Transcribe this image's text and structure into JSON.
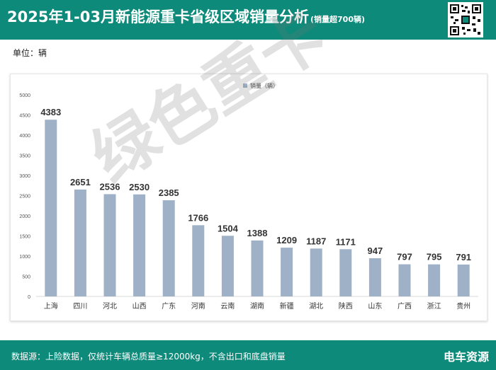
{
  "header": {
    "title": "2025年1-03月新能源重卡省级区域销量分析",
    "subtitle": "(销量超700辆)"
  },
  "unit_label": "单位：辆",
  "footer": {
    "source": "数据源：上险数据，仅统计车辆总质量≥12000kg，不含出口和底盘销量",
    "brand": "电车资源"
  },
  "watermark": "绿色重卡",
  "colors": {
    "header_bg": "#0e8a7a",
    "bar": "#9fb1c6"
  },
  "chart_data": {
    "type": "bar",
    "categories": [
      "上海",
      "四川",
      "河北",
      "山西",
      "广东",
      "河南",
      "云南",
      "湖南",
      "新疆",
      "湖北",
      "陕西",
      "山东",
      "广西",
      "浙江",
      "贵州"
    ],
    "series": [
      {
        "name": "销量（辆）",
        "values": [
          4383,
          2651,
          2536,
          2530,
          2385,
          1766,
          1504,
          1388,
          1209,
          1187,
          1171,
          947,
          797,
          795,
          791
        ]
      }
    ],
    "ylim": [
      0,
      5000
    ],
    "yticks": [
      0,
      500,
      1000,
      1500,
      2000,
      2500,
      3000,
      3500,
      4000,
      4500,
      5000
    ],
    "legend": "top-center",
    "grid": false,
    "data_labels": true
  }
}
